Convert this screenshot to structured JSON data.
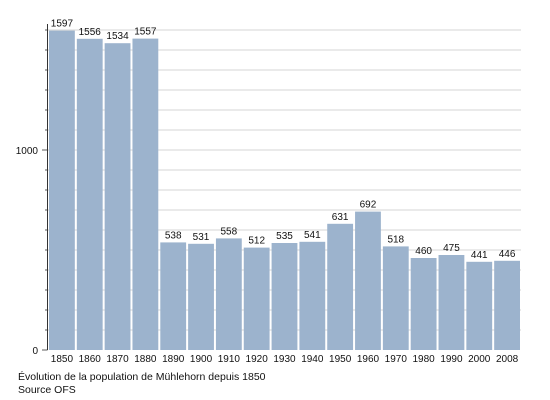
{
  "chart_data": {
    "type": "bar",
    "categories": [
      "1850",
      "1860",
      "1870",
      "1880",
      "1890",
      "1900",
      "1910",
      "1920",
      "1930",
      "1940",
      "1950",
      "1960",
      "1970",
      "1980",
      "1990",
      "2000",
      "2008"
    ],
    "values": [
      1597,
      1556,
      1534,
      1557,
      538,
      531,
      558,
      512,
      535,
      541,
      631,
      692,
      518,
      460,
      475,
      441,
      446
    ],
    "ylim": [
      0,
      1600
    ],
    "yticks": [
      0,
      1000
    ],
    "grid": true,
    "bar_color": "#9cb3cd",
    "grid_color": "#c8c8c8"
  },
  "caption": {
    "line1": "Évolution de la population de Mühlehorn depuis 1850",
    "line2": "Source OFS"
  }
}
